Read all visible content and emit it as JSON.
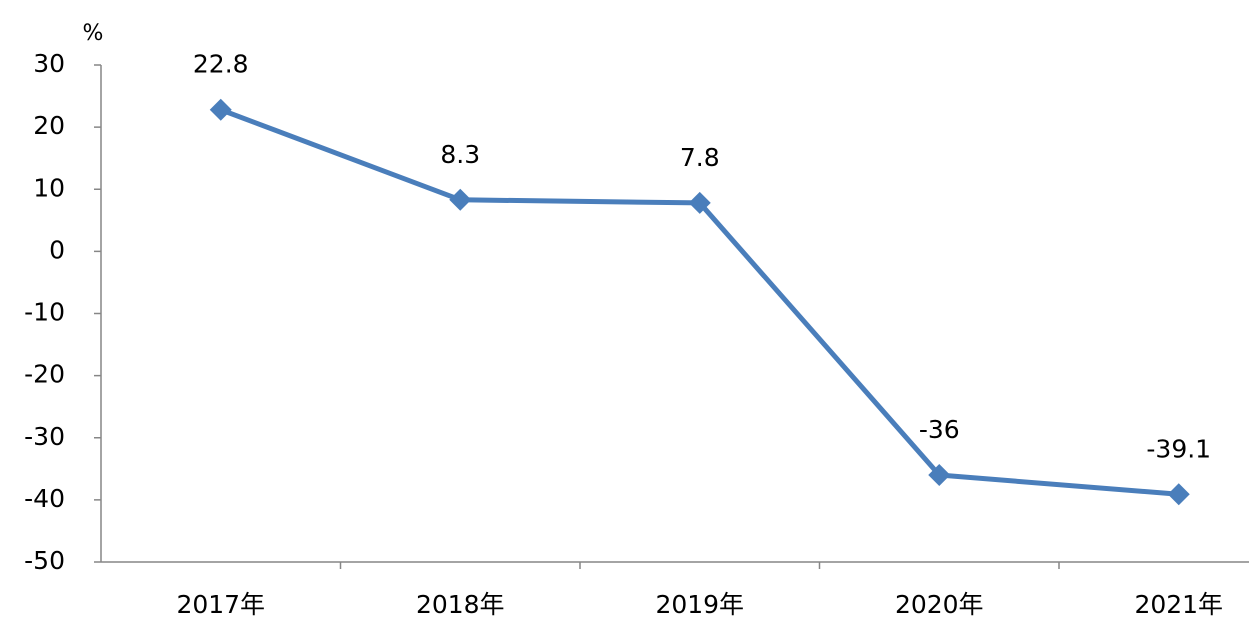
{
  "chart_data": {
    "type": "line",
    "y_label": "%",
    "categories": [
      "2017年",
      "2018年",
      "2019年",
      "2020年",
      "2021年"
    ],
    "series": [
      {
        "color": "#4a7ebb",
        "values": [
          22.8,
          8.3,
          7.8,
          -36,
          -39.1
        ]
      }
    ],
    "ylim": [
      -50,
      30
    ],
    "yticks": [
      -50,
      -40,
      -30,
      -20,
      -10,
      0,
      10,
      20,
      30
    ]
  }
}
